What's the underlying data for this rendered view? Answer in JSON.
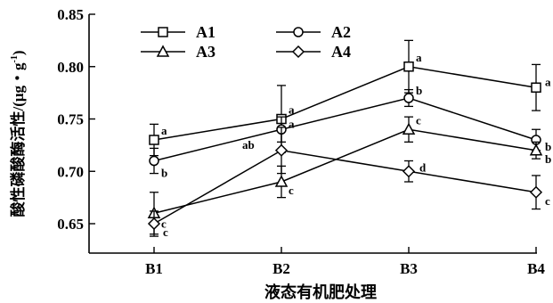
{
  "chart_data": {
    "type": "line",
    "categories": [
      "B1",
      "B2",
      "B3",
      "B4"
    ],
    "xlabel": "液态有机肥处理",
    "ylabel": "酸性磷酸酶活性/(μg・g",
    "ylabel_sup": "-1",
    "ylabel_close": ")",
    "ylim": [
      0.65,
      0.85
    ],
    "yticks": [
      "0.65",
      "0.70",
      "0.75",
      "0.80",
      "0.85"
    ],
    "legend_position": "top-left",
    "series": [
      {
        "name": "A1",
        "marker": "square",
        "values": [
          0.73,
          0.75,
          0.8,
          0.78
        ],
        "errors": [
          0.015,
          0.032,
          0.025,
          0.022
        ],
        "labels": [
          "a",
          "a",
          "a",
          "a"
        ]
      },
      {
        "name": "A2",
        "marker": "circle",
        "values": [
          0.71,
          0.74,
          0.77,
          0.73
        ],
        "errors": [
          0.012,
          0.012,
          0.008,
          0.01
        ],
        "labels": [
          "b",
          "a",
          "b",
          "b"
        ]
      },
      {
        "name": "A3",
        "marker": "triangle",
        "values": [
          0.66,
          0.69,
          0.74,
          0.72
        ],
        "errors": [
          0.02,
          0.015,
          0.012,
          0.008
        ],
        "labels": [
          "c",
          "c",
          "c",
          "b"
        ]
      },
      {
        "name": "A4",
        "marker": "diamond",
        "values": [
          0.65,
          0.72,
          0.7,
          0.68
        ],
        "errors": [
          0.012,
          0.022,
          0.01,
          0.016
        ],
        "labels": [
          "c",
          "ab",
          "d",
          "c"
        ]
      }
    ]
  }
}
